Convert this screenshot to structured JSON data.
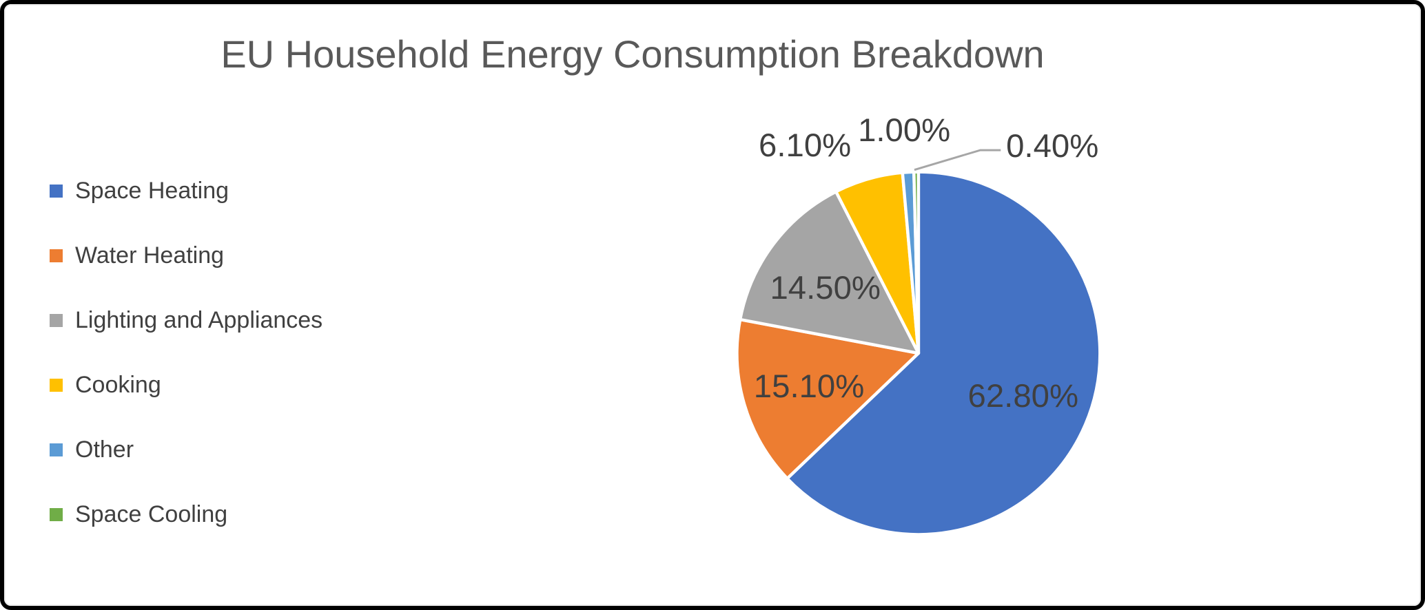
{
  "title": "EU Household Energy Consumption Breakdown",
  "chart_data": {
    "type": "pie",
    "title": "EU Household Energy Consumption Breakdown",
    "categories": [
      "Space Heating",
      "Water Heating",
      "Lighting and Appliances",
      "Cooking",
      "Other",
      "Space Cooling"
    ],
    "values": [
      62.8,
      15.1,
      14.5,
      6.1,
      1.0,
      0.4
    ],
    "labels": [
      "62.80%",
      "15.10%",
      "14.50%",
      "6.10%",
      "1.00%",
      "0.40%"
    ],
    "colors": [
      "#4472C4",
      "#ED7D31",
      "#A5A5A5",
      "#FFC000",
      "#5B9BD5",
      "#70AD47"
    ],
    "legend_position": "left",
    "start_angle_deg": 0,
    "direction": "clockwise"
  },
  "colors": {
    "title_text": "#595959",
    "data_label_text": "#404040",
    "legend_text": "#404040",
    "leader_line": "#A6A6A6",
    "slice_divider": "#FFFFFF",
    "background": "#FFFFFF",
    "frame_border": "#000000",
    "canvas_edge": "#ECECEC"
  }
}
